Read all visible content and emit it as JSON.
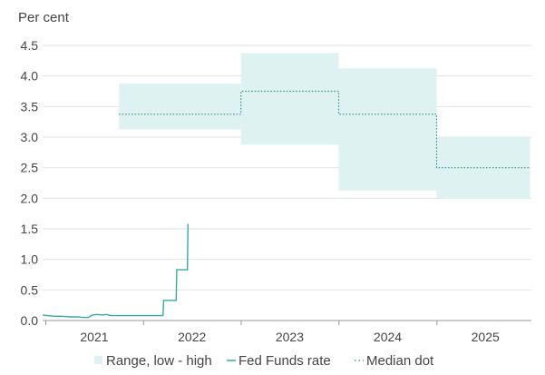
{
  "chart_data": {
    "type": "line",
    "ylabel": "Per cent",
    "ylim": [
      0,
      4.5
    ],
    "y_ticks": [
      "0.0",
      "0.5",
      "1.0",
      "1.5",
      "2.0",
      "2.5",
      "3.0",
      "3.5",
      "4.0",
      "4.5"
    ],
    "y_tick_values": [
      0,
      0.5,
      1,
      1.5,
      2,
      2.5,
      3,
      3.5,
      4,
      4.5
    ],
    "x_ticks": [
      "2021",
      "2022",
      "2023",
      "2024",
      "2025"
    ],
    "grid": "horizontal",
    "legend_position": "bottom",
    "colors": {
      "band": "#dff2f2",
      "line": "#3aa9a3",
      "median": "#2b8f8a",
      "grid": "#e2e2e2",
      "axis": "#999999"
    },
    "legend": [
      {
        "label": "Range, low - high",
        "symbol": "band"
      },
      {
        "label": "Fed Funds rate",
        "symbol": "line"
      },
      {
        "label": "Median dot",
        "symbol": "dot"
      }
    ],
    "series": [
      {
        "name": "Range, low - high",
        "segments": [
          {
            "x_start": "2021-10-01",
            "x_end": "2022-12-31",
            "low": 3.125,
            "high": 3.875
          },
          {
            "x_start": "2022-12-31",
            "x_end": "2023-12-31",
            "low": 2.875,
            "high": 4.375
          },
          {
            "x_start": "2023-12-31",
            "x_end": "2024-12-31",
            "low": 2.125,
            "high": 4.125
          },
          {
            "x_start": "2024-12-31",
            "x_end": "2025-12-15",
            "low": 2.0,
            "high": 3.0
          }
        ]
      },
      {
        "name": "Median dot",
        "segments": [
          {
            "x_start": "2021-10-01",
            "x_end": "2022-12-31",
            "value": 3.375
          },
          {
            "x_start": "2022-12-31",
            "x_end": "2023-12-31",
            "value": 3.75
          },
          {
            "x_start": "2023-12-31",
            "x_end": "2024-12-31",
            "value": 3.375
          },
          {
            "x_start": "2024-12-31",
            "x_end": "2025-12-15",
            "value": 2.5
          }
        ]
      },
      {
        "name": "Fed Funds rate",
        "points": [
          [
            "2020-12-20",
            0.09
          ],
          [
            "2021-01-05",
            0.08
          ],
          [
            "2021-02-01",
            0.07
          ],
          [
            "2021-03-01",
            0.07
          ],
          [
            "2021-04-01",
            0.06
          ],
          [
            "2021-05-01",
            0.06
          ],
          [
            "2021-05-15",
            0.05
          ],
          [
            "2021-06-10",
            0.05
          ],
          [
            "2021-06-20",
            0.08
          ],
          [
            "2021-06-25",
            0.09
          ],
          [
            "2021-07-10",
            0.1
          ],
          [
            "2021-08-01",
            0.09
          ],
          [
            "2021-08-15",
            0.1
          ],
          [
            "2021-09-01",
            0.08
          ],
          [
            "2021-10-01",
            0.08
          ],
          [
            "2021-11-01",
            0.08
          ],
          [
            "2021-12-01",
            0.08
          ],
          [
            "2022-01-15",
            0.08
          ],
          [
            "2022-03-15",
            0.08
          ],
          [
            "2022-03-17",
            0.33
          ],
          [
            "2022-05-03",
            0.33
          ],
          [
            "2022-05-05",
            0.83
          ],
          [
            "2022-06-14",
            0.83
          ],
          [
            "2022-06-16",
            1.58
          ]
        ]
      }
    ]
  }
}
